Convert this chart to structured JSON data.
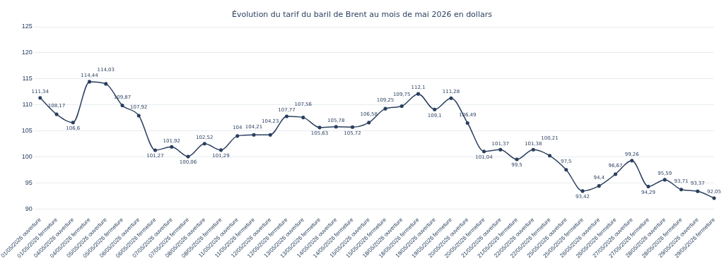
{
  "chart_data": {
    "type": "line",
    "title": "Évolution du tarif du baril de Brent au mois de mai 2026 en dollars",
    "categories": [
      "01/05/2026 ouverture",
      "01/05/2026 fermeture",
      "04/05/2026 ouverture",
      "04/05/2026 fermeture",
      "05/05/2026 ouverture",
      "05/05/2026 fermeture",
      "06/05/2026 ouverture",
      "06/05/2026 fermeture",
      "07/05/2026 ouverture",
      "07/05/2026 fermeture",
      "08/05/2026 ouverture",
      "08/05/2026 fermeture",
      "11/05/2026 ouverture",
      "11/05/2026 fermeture",
      "12/05/2026 ouverture",
      "12/05/2026 fermeture",
      "13/05/2026 ouverture",
      "13/05/2026 fermeture",
      "14/05/2026 ouverture",
      "14/05/2026 fermeture",
      "15/05/2026 ouverture",
      "15/05/2026 fermeture",
      "18/05/2026 ouverture",
      "18/05/2026 fermeture",
      "19/05/2026 ouverture",
      "19/05/2026 fermeture",
      "20/05/2026 ouverture",
      "20/05/2026 fermeture",
      "21/05/2026 ouverture",
      "21/05/2026 fermeture",
      "22/05/2026 ouverture",
      "22/05/2026 fermeture",
      "25/05/2026 ouverture",
      "25/05/2026 fermeture",
      "26/05/2026 ouverture",
      "26/05/2026 fermeture",
      "27/05/2026 ouverture",
      "27/05/2026 fermeture",
      "28/05/2026 ouverture",
      "28/05/2026 fermeture",
      "29/05/2026 ouverture",
      "29/05/2026 fermeture"
    ],
    "series": [
      {
        "color": "#2a3f5f",
        "values": [
          111.34,
          108.17,
          106.6,
          114.44,
          114.03,
          109.87,
          107.92,
          101.27,
          101.92,
          100.06,
          102.52,
          101.29,
          104,
          104.21,
          104.23,
          107.77,
          107.56,
          105.63,
          105.78,
          105.72,
          106.58,
          109.25,
          109.75,
          112.1,
          109.1,
          111.28,
          106.49,
          101.04,
          101.37,
          99.5,
          101.38,
          100.21,
          97.5,
          93.42,
          94.4,
          96.67,
          99.26,
          94.29,
          95.59,
          93.71,
          93.37,
          92.05
        ],
        "value_labels": [
          "111,34",
          "108,17",
          "106,6",
          "114,44",
          "114,03",
          "109,87",
          "107,92",
          "101,27",
          "101,92",
          "100,06",
          "102,52",
          "101,29",
          "104",
          "104,21",
          "104,23",
          "107,77",
          "107,56",
          "105,63",
          "105,78",
          "105,72",
          "106,58",
          "109,25",
          "109,75",
          "112,1",
          "109,1",
          "111,28",
          "106,49",
          "101,04",
          "101,37",
          "99,5",
          "101,38",
          "100,21",
          "97,5",
          "93,42",
          "94,4",
          "96,67",
          "99,26",
          "94,29",
          "95,59",
          "93,71",
          "93,37",
          "92,05"
        ]
      }
    ],
    "ylim": [
      90,
      125
    ],
    "yticks": [
      90,
      95,
      100,
      105,
      110,
      115,
      120,
      125
    ],
    "grid": "y",
    "legend": false,
    "marker": "circle",
    "line_style": "solid"
  }
}
